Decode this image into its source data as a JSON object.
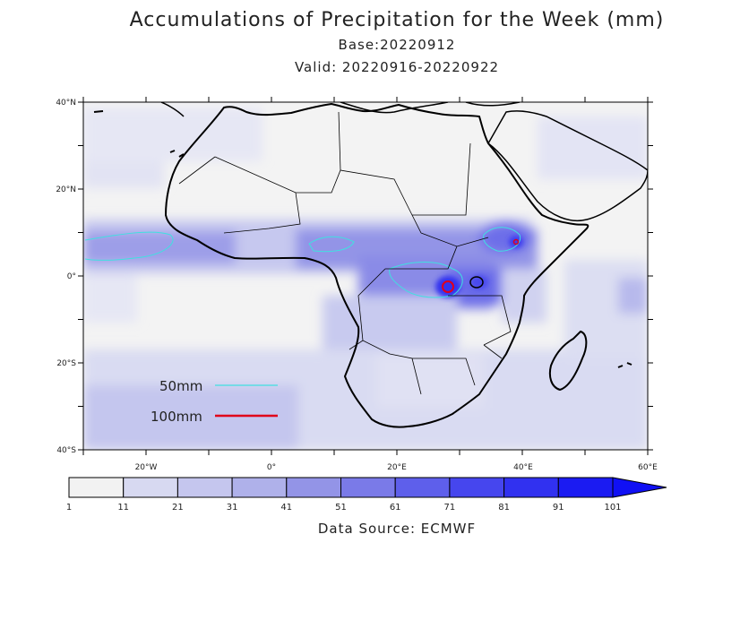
{
  "header": {
    "title": "Accumulations of Precipitation for the Week (mm)",
    "base": "Base:20220912",
    "valid": "Valid: 20220916-20220922"
  },
  "axes": {
    "lat_labels": [
      "40°N",
      "20°N",
      "0°",
      "20°S",
      "40°S"
    ],
    "lon_labels": [
      "20°W",
      "0°",
      "20°E",
      "40°E",
      "60°E"
    ]
  },
  "contour_legend": [
    {
      "label": "50mm",
      "color": "#40e0e0"
    },
    {
      "label": "100mm",
      "color": "#e0001a"
    }
  ],
  "colorbar": {
    "labels": [
      "1",
      "11",
      "21",
      "31",
      "41",
      "51",
      "61",
      "71",
      "81",
      "91",
      "101"
    ],
    "colors": [
      "#f2f2f2",
      "#d7d9f1",
      "#c5c6ee",
      "#afb1ea",
      "#9394e7",
      "#7a7ae8",
      "#5e5feb",
      "#4646ee",
      "#3131f0",
      "#1b1bf2"
    ]
  },
  "source": "Data Source: ECMWF"
}
